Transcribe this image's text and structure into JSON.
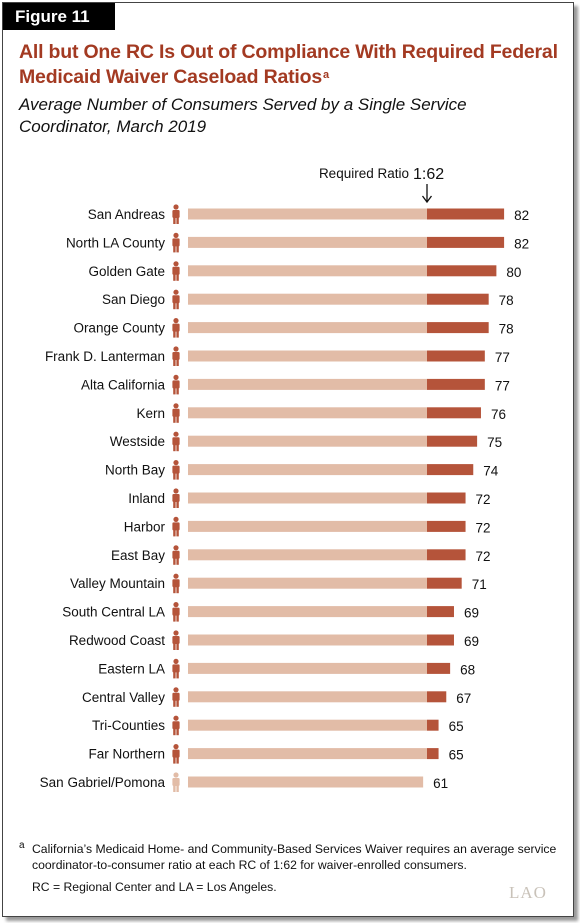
{
  "figure_label": "Figure 11",
  "title": "All but One RC Is Out of Compliance With Required Federal Medicaid Waiver Caseload Ratios",
  "title_footnote_mark": "a",
  "subtitle": "Average Number of Consumers Served by a Single Service Coordinator, March 2019",
  "required_ratio": {
    "label": "Required Ratio",
    "ratio_text": "1:62",
    "value": 62
  },
  "colors": {
    "title": "#a33a22",
    "bar_base": "#e2bca7",
    "bar_excess": "#b5543a",
    "person_out": "#b5543a",
    "person_in": "#e2bca7"
  },
  "chart_data": {
    "type": "bar",
    "orientation": "horizontal",
    "title": "All but One RC Is Out of Compliance With Required Federal Medicaid Waiver Caseload Ratios",
    "subtitle": "Average Number of Consumers Served by a Single Service Coordinator, March 2019",
    "categories": [
      "San Andreas",
      "North LA County",
      "Golden Gate",
      "San Diego",
      "Orange County",
      "Frank D. Lanterman",
      "Alta California",
      "Kern",
      "Westside",
      "North Bay",
      "Inland",
      "Harbor",
      "East Bay",
      "Valley Mountain",
      "South Central LA",
      "Redwood Coast",
      "Eastern LA",
      "Central Valley",
      "Tri-Counties",
      "Far Northern",
      "San Gabriel/Pomona"
    ],
    "values": [
      82,
      82,
      80,
      78,
      78,
      77,
      77,
      76,
      75,
      74,
      72,
      72,
      72,
      71,
      69,
      69,
      68,
      67,
      65,
      65,
      61
    ],
    "reference_line": {
      "value": 62,
      "label": "Required Ratio 1:62"
    },
    "xlim": [
      0,
      82
    ],
    "grid": false,
    "legend": "none"
  },
  "footnote": {
    "mark": "a",
    "text": "California’s Medicaid Home- and Community-Based Services Waiver requires an average service coordinator-to-consumer ratio at each RC of 1:62 for waiver-enrolled consumers."
  },
  "abbreviations": "RC = Regional Center and LA = Los Angeles.",
  "logo_text": "LAO",
  "icons": {
    "person": "person-icon",
    "arrow": "down-arrow-icon"
  }
}
